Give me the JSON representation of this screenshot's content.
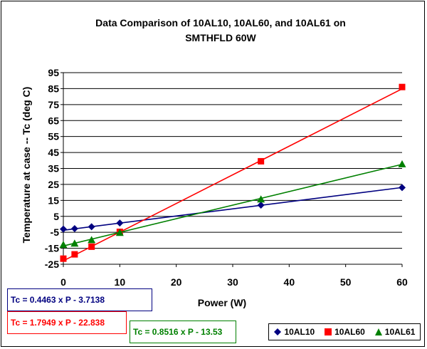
{
  "chart_data": {
    "type": "scatter",
    "title_line1": "Data Comparison of 10AL10, 10AL60, and 10AL61 on",
    "title_line2": "SMTHFLD 60W",
    "xlabel": "Power (W)",
    "ylabel": "Temperature at case -- Tc (deg C)",
    "xlim": [
      0,
      60
    ],
    "ylim": [
      -25,
      95
    ],
    "x_ticks": [
      0,
      10,
      20,
      30,
      40,
      50,
      60
    ],
    "y_ticks": [
      -25,
      -15,
      -5,
      5,
      15,
      25,
      35,
      45,
      55,
      65,
      75,
      85,
      95
    ],
    "grid": "horizontal",
    "legend_position": "bottom-right",
    "series": [
      {
        "name": "10AL10",
        "color": "#000080",
        "marker": "diamond",
        "x": [
          0,
          2,
          5,
          10,
          35,
          60
        ],
        "y": [
          -3,
          -2.7,
          -1.5,
          0.8,
          12,
          23
        ],
        "fit_line": [
          -3.7138,
          23.06
        ]
      },
      {
        "name": "10AL60",
        "color": "#ff0000",
        "marker": "square",
        "x": [
          0,
          2,
          5,
          10,
          35,
          60
        ],
        "y": [
          -21.5,
          -18.8,
          -14,
          -4.7,
          39.5,
          86
        ],
        "fit_line": [
          -22.838,
          84.86
        ]
      },
      {
        "name": "10AL61",
        "color": "#008000",
        "marker": "triangle",
        "x": [
          0,
          2,
          5,
          10,
          35,
          60
        ],
        "y": [
          -13,
          -12.2,
          -10,
          -5.5,
          15.5,
          37.5
        ],
        "fit_line": [
          -13.53,
          37.57
        ]
      }
    ],
    "equations": [
      {
        "text": "Tc = 0.4463 x P - 3.7138",
        "color": "#000080"
      },
      {
        "text": "Tc = 1.7949 x P - 22.838",
        "color": "#ff0000"
      },
      {
        "text": "Tc = 0.8516 x P - 13.53",
        "color": "#008000"
      }
    ]
  }
}
